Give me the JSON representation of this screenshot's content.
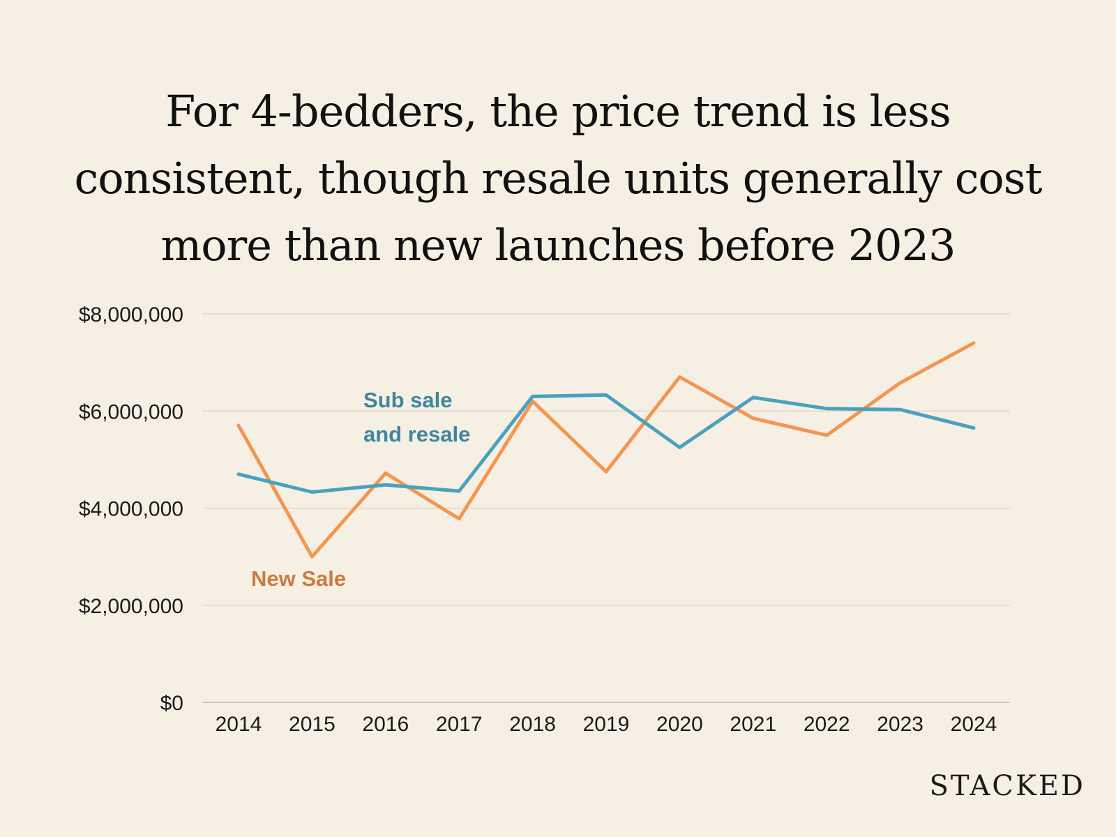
{
  "chart_data": {
    "type": "line",
    "title_lines": [
      "For 4-bedders, the price trend is less",
      "consistent, though resale units generally cost",
      "more than new launches before 2023"
    ],
    "categories": [
      "2014",
      "2015",
      "2016",
      "2017",
      "2018",
      "2019",
      "2020",
      "2021",
      "2022",
      "2023",
      "2024"
    ],
    "y_ticks": [
      {
        "value": 0,
        "label": "$0"
      },
      {
        "value": 2000000,
        "label": "$2,000,000"
      },
      {
        "value": 4000000,
        "label": "$4,000,000"
      },
      {
        "value": 6000000,
        "label": "$6,000,000"
      },
      {
        "value": 8000000,
        "label": "$8,000,000"
      }
    ],
    "ylim": [
      0,
      8000000
    ],
    "grid": true,
    "series": [
      {
        "name": "New Sale",
        "label_lines": [
          "New Sale"
        ],
        "color": "#f49550",
        "label_color": "#cd7a3f",
        "values": [
          5700000,
          3000000,
          4720000,
          3780000,
          6200000,
          4750000,
          6700000,
          5850000,
          5500000,
          6580000,
          7400000
        ]
      },
      {
        "name": "Sub sale and resale",
        "label_lines": [
          "Sub sale",
          "and resale"
        ],
        "color": "#4aa1bf",
        "label_color": "#3f859f",
        "values": [
          4700000,
          4330000,
          4480000,
          4350000,
          6300000,
          6330000,
          5250000,
          6280000,
          6050000,
          6030000,
          5650000
        ]
      }
    ]
  },
  "brand": "STACKED"
}
